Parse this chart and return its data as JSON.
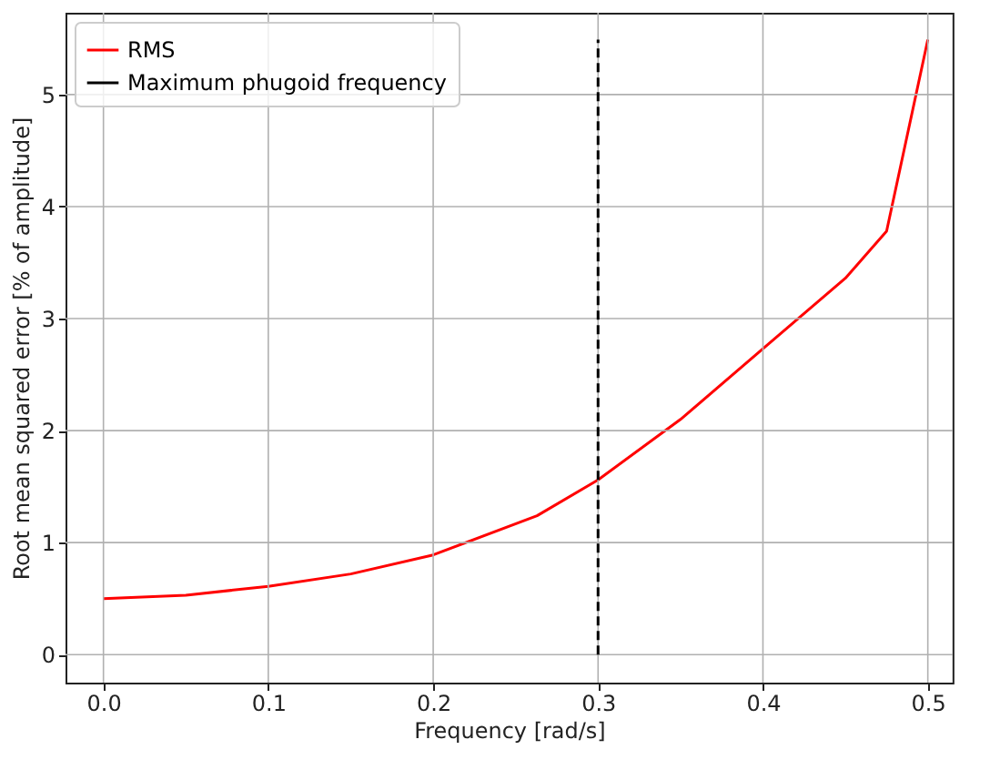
{
  "chart_data": {
    "type": "line",
    "xlabel": "Frequency [rad/s]",
    "ylabel": "Root mean squared error [% of amplitude]",
    "x": [
      0,
      0.05,
      0.1,
      0.15,
      0.2,
      0.263,
      0.3,
      0.35,
      0.4,
      0.45,
      0.475,
      0.5
    ],
    "series": [
      {
        "name": "RMS",
        "color": "#ff0000",
        "values": [
          0.5,
          0.53,
          0.61,
          0.72,
          0.89,
          1.24,
          1.56,
          2.1,
          2.73,
          3.36,
          3.78,
          5.49
        ]
      },
      {
        "name": "Maximum phugoid frequency",
        "color": "#000000",
        "line_style": "dashed",
        "x": [
          0.3,
          0.3
        ],
        "values": [
          0,
          5.49
        ]
      }
    ],
    "xlim": [
      -0.023,
      0.515
    ],
    "ylim": [
      -0.25,
      5.73
    ],
    "xticks": [
      {
        "value": 0,
        "label": "0.0"
      },
      0.1,
      0.2,
      0.3,
      0.4,
      0.5
    ],
    "yticks": [
      0,
      1,
      2,
      3,
      4,
      5
    ],
    "grid": true,
    "legend": "top left",
    "line_style": "solid"
  }
}
